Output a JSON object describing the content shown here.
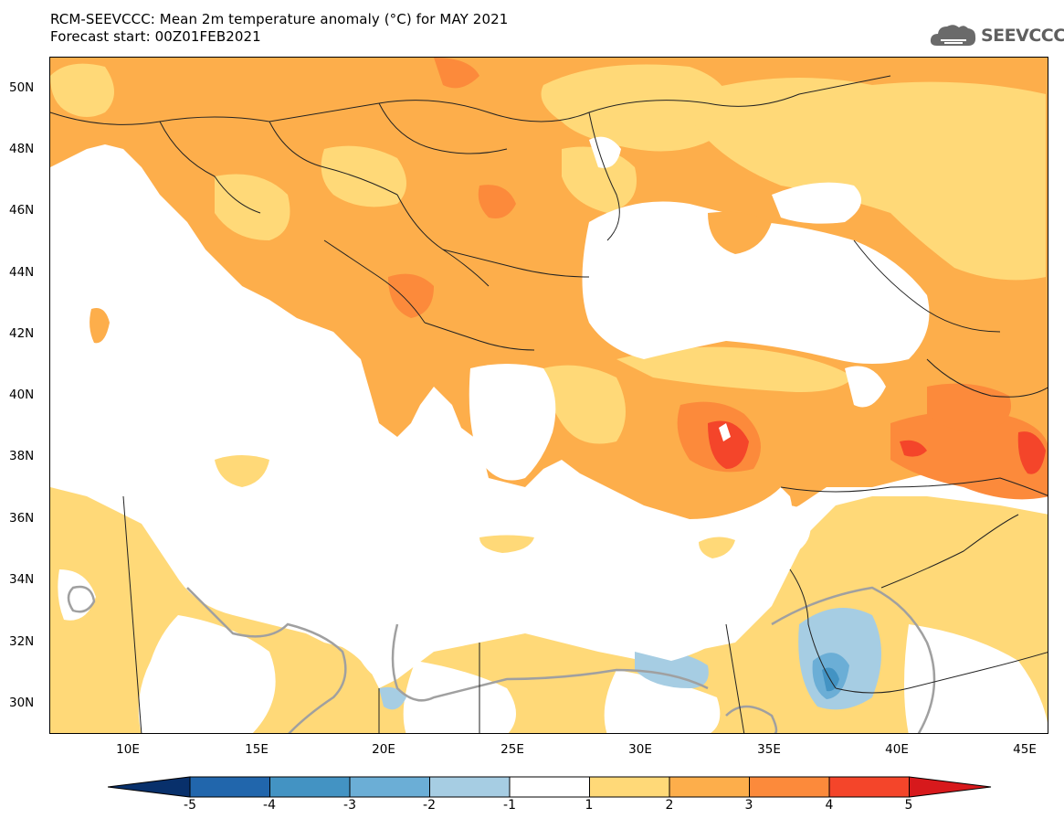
{
  "title": {
    "line1": "RCM-SEEVCCC: Mean 2m temperature anomaly (°C) for MAY 2021",
    "line2": "Forecast start: 00Z01FEB2021"
  },
  "logo": {
    "text": "SEEVCCC",
    "icon": "cloud-icon"
  },
  "axes": {
    "lat_labels": [
      "50N",
      "48N",
      "46N",
      "44N",
      "42N",
      "40N",
      "38N",
      "36N",
      "34N",
      "32N",
      "30N"
    ],
    "lon_labels": [
      "10E",
      "15E",
      "20E",
      "25E",
      "30E",
      "35E",
      "40E",
      "45E"
    ]
  },
  "colorbar": {
    "labels": [
      "-5",
      "-4",
      "-3",
      "-2",
      "-1",
      "1",
      "2",
      "3",
      "4",
      "5"
    ],
    "colors": [
      "#08306b",
      "#2166ac",
      "#4393c3",
      "#6baed6",
      "#a6cde3",
      "#ffffff",
      "#ffd978",
      "#fdae4b",
      "#fc8a3b",
      "#f4452a",
      "#d7191c"
    ]
  },
  "palette": {
    "light_orange": "#ffd978",
    "orange": "#fdae4b",
    "dark_orange": "#fc8a3b",
    "red": "#f4452a",
    "light_blue": "#a6cde3",
    "mid_blue": "#6baed6",
    "blue": "#4393c3",
    "contour_gray": "#a0a0a0"
  }
}
